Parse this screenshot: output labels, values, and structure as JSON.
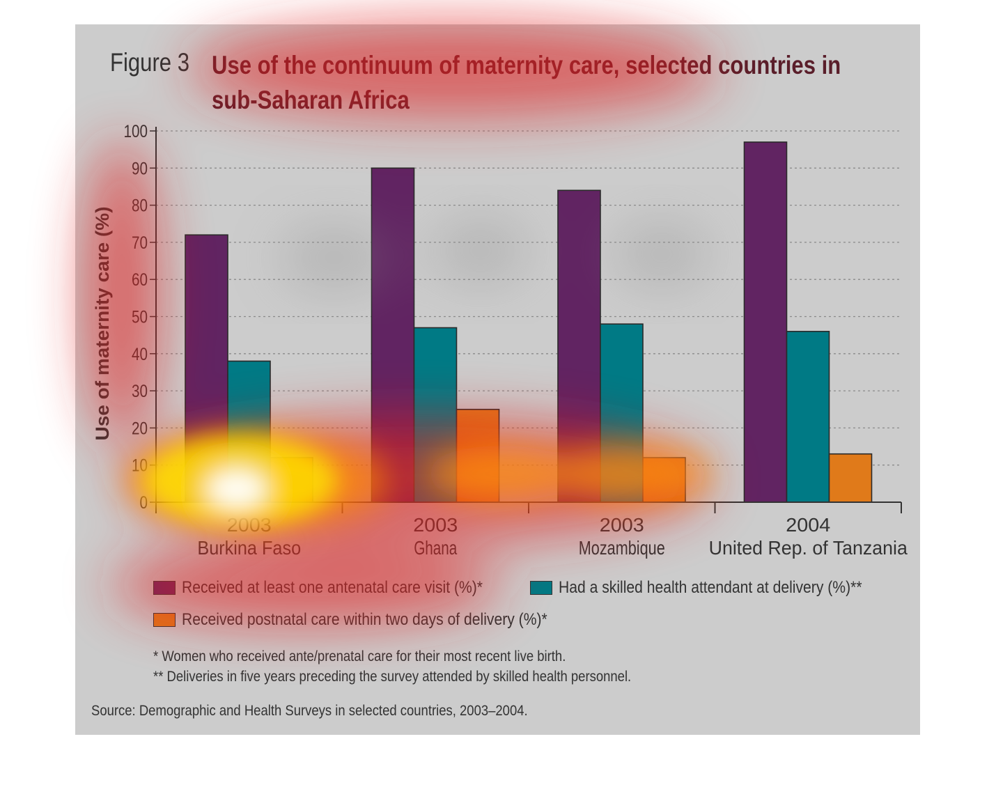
{
  "figure_label": "Figure 3",
  "title": "Use of the continuum of maternity care, selected countries in sub-Saharan Africa",
  "chart_data": {
    "type": "bar",
    "ylabel": "Use of maternity care (%)",
    "xlabel": "",
    "ylim": [
      0,
      100
    ],
    "yticks": [
      0,
      10,
      20,
      30,
      40,
      50,
      60,
      70,
      80,
      90,
      100
    ],
    "grid": "horizontal dotted",
    "categories": [
      {
        "year": "2003",
        "country": "Burkina Faso"
      },
      {
        "year": "2003",
        "country": "Ghana"
      },
      {
        "year": "2003",
        "country": "Mozambique"
      },
      {
        "year": "2004",
        "country": "United Rep. of Tanzania"
      }
    ],
    "series": [
      {
        "name": "Received at least one antenatal care visit (%)*",
        "color": "#612462",
        "values": [
          72,
          90,
          84,
          97
        ]
      },
      {
        "name": "Had a skilled health attendant at delivery (%)**",
        "color": "#007a85",
        "values": [
          38,
          47,
          48,
          46
        ]
      },
      {
        "name": "Received postnatal care within two days of delivery (%)*",
        "color": "#e07a1a",
        "values": [
          12,
          25,
          12,
          13
        ]
      }
    ],
    "legend_position": "bottom"
  },
  "notes": [
    "* Women who received ante/prenatal care for their most recent live birth.",
    "** Deliveries in five years preceding the survey attended by skilled health personnel."
  ],
  "source": "Source: Demographic and Health Surveys in selected countries, 2003–2004."
}
